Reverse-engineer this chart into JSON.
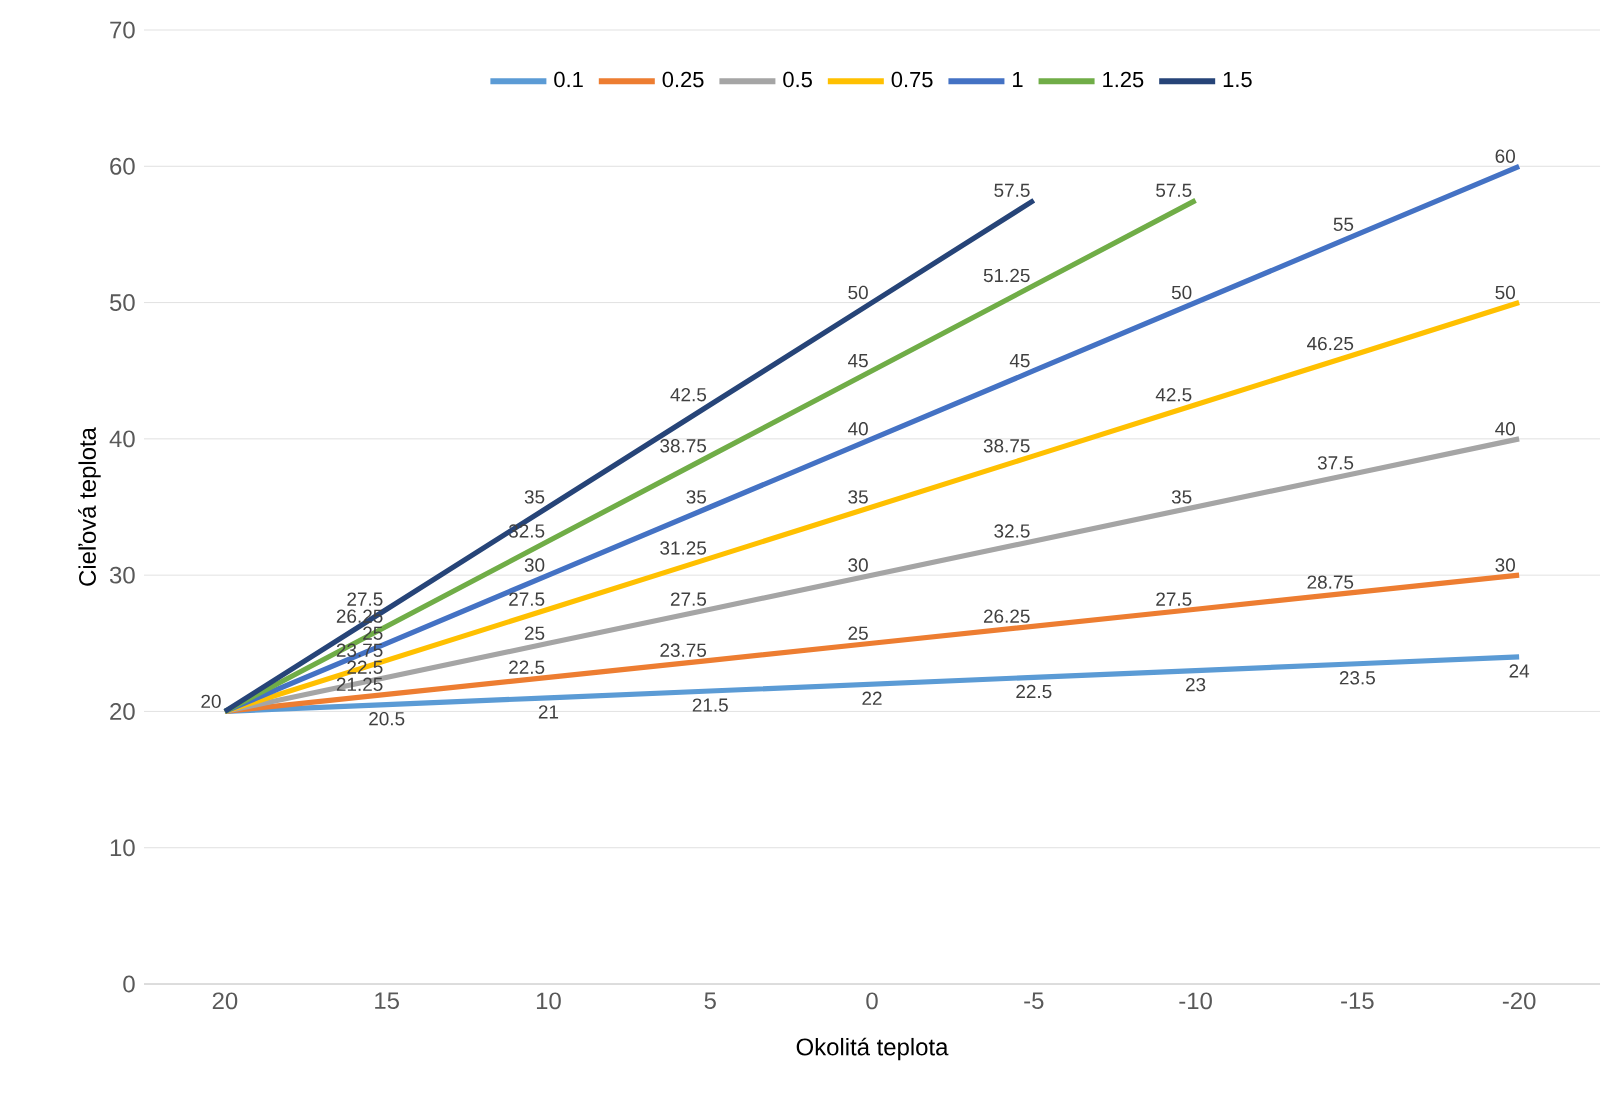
{
  "chart_data": {
    "type": "line",
    "xlabel": "Okolitá teplota",
    "ylabel": "Cieľová teplota",
    "categories": [
      "20",
      "15",
      "10",
      "5",
      "0",
      "-5",
      "-10",
      "-15",
      "-20"
    ],
    "series": [
      {
        "name": "0.1",
        "color": "#5b9bd5",
        "values": [
          20,
          20.5,
          21,
          21.5,
          22,
          22.5,
          23,
          23.5,
          24
        ],
        "value_labels": [
          "20",
          "20.5",
          "21",
          "21.5",
          "22",
          "22.5",
          "23",
          "23.5",
          "24"
        ]
      },
      {
        "name": "0.25",
        "color": "#ed7d31",
        "values": [
          20,
          21.25,
          22.5,
          23.75,
          25,
          26.25,
          27.5,
          28.75,
          30
        ],
        "value_labels": [
          null,
          "21.25",
          "22.5",
          "23.75",
          "25",
          "26.25",
          "27.5",
          "28.75",
          "30"
        ]
      },
      {
        "name": "0.5",
        "color": "#a5a5a5",
        "values": [
          20,
          22.5,
          25,
          27.5,
          30,
          32.5,
          35,
          37.5,
          40
        ],
        "value_labels": [
          null,
          "22.5",
          "25",
          "27.5",
          "30",
          "32.5",
          "35",
          "37.5",
          "40"
        ]
      },
      {
        "name": "0.75",
        "color": "#ffc000",
        "values": [
          20,
          23.75,
          27.5,
          31.25,
          35,
          38.75,
          42.5,
          46.25,
          50
        ],
        "value_labels": [
          null,
          "23.75",
          "27.5",
          "31.25",
          "35",
          "38.75",
          "42.5",
          "46.25",
          "50"
        ]
      },
      {
        "name": "1",
        "color": "#4472c4",
        "values": [
          20,
          25,
          30,
          35,
          40,
          45,
          50,
          55,
          60
        ],
        "value_labels": [
          null,
          "25",
          "30",
          "35",
          "40",
          "45",
          "50",
          "55",
          "60"
        ]
      },
      {
        "name": "1.25",
        "color": "#70ad47",
        "values": [
          20,
          26.25,
          32.5,
          38.75,
          45,
          51.25,
          57.5,
          null,
          null
        ],
        "value_labels": [
          null,
          "26.25",
          "32.5",
          "38.75",
          "45",
          "51.25",
          "57.5",
          null,
          null
        ]
      },
      {
        "name": "1.5",
        "color": "#264478",
        "values": [
          20,
          27.5,
          35,
          42.5,
          50,
          57.5,
          null,
          null,
          null
        ],
        "value_labels": [
          null,
          "27.5",
          "35",
          "42.5",
          "50",
          "57.5",
          null,
          null,
          null
        ]
      }
    ],
    "ylim": [
      0,
      70
    ],
    "yticks": [
      0,
      10,
      20,
      30,
      40,
      50,
      60,
      70
    ],
    "grid": "y",
    "legend": "top",
    "marker": "none",
    "line_style": "solid"
  }
}
